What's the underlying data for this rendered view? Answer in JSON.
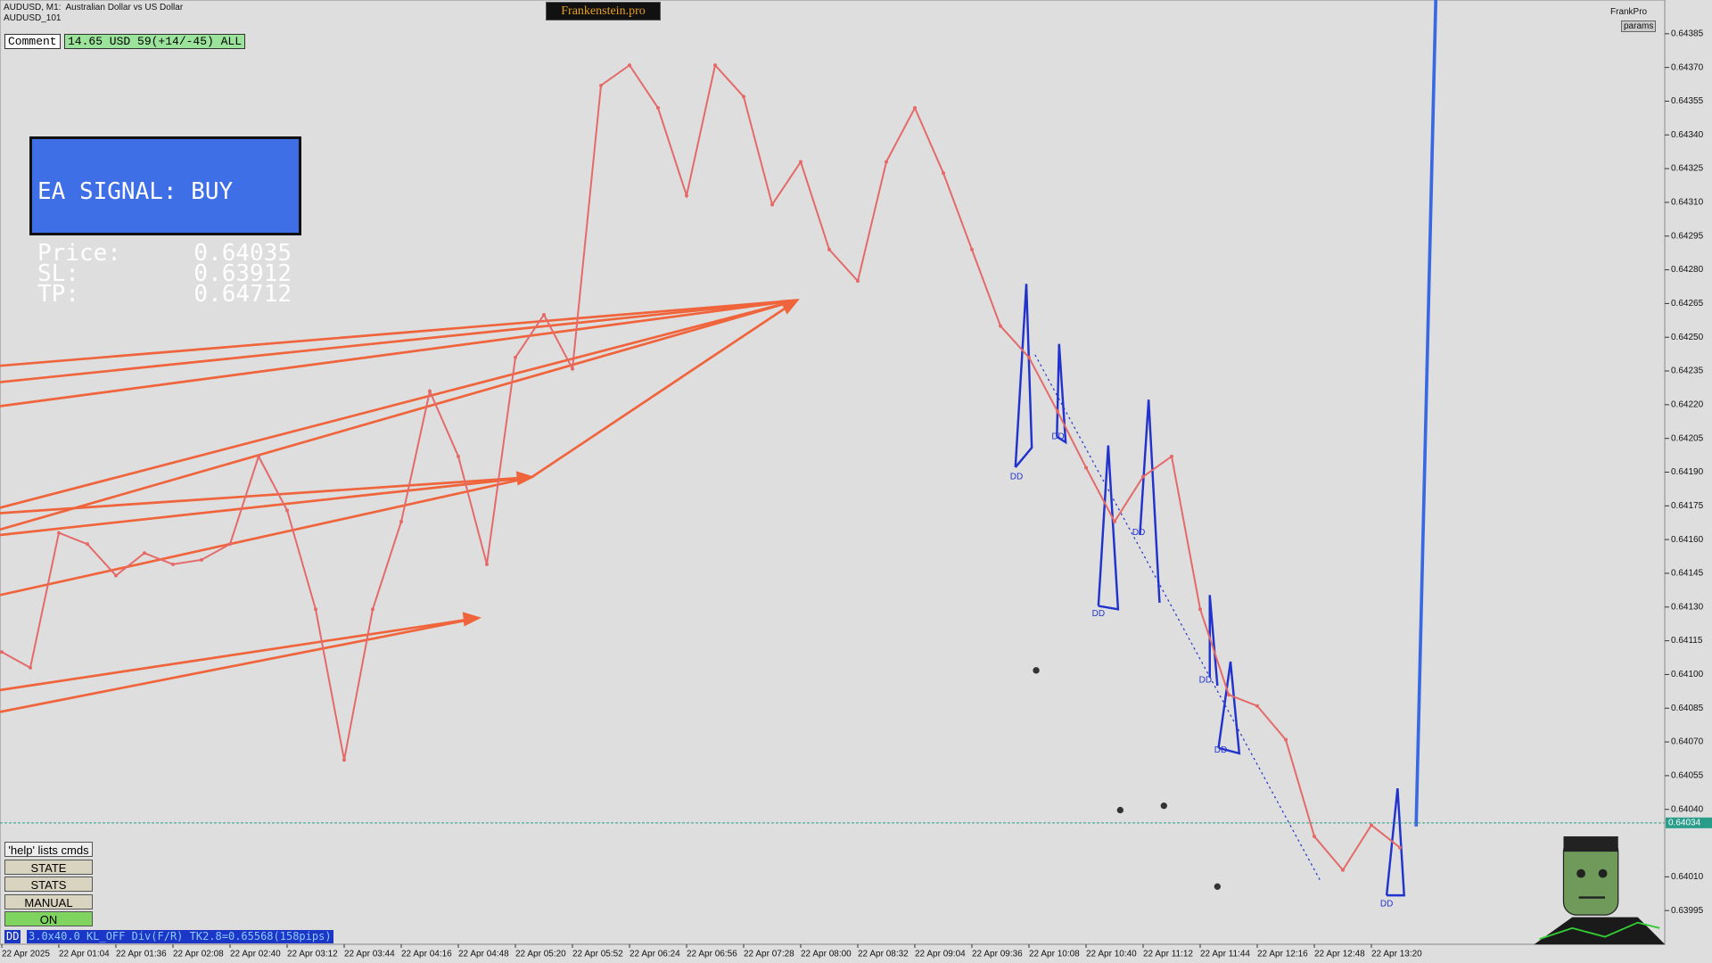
{
  "header": {
    "symbol": "AUDUSD, M1:  Australian Dollar vs US Dollar",
    "account": "AUDUSD_101",
    "brand": "Frankenstein.pro",
    "user": "FrankPro",
    "params_button": "params"
  },
  "comment": {
    "label": "Comment",
    "value": "14.65 USD 59(+14/-45) ALL"
  },
  "signal": {
    "title": "EA SIGNAL: BUY",
    "rows": [
      [
        "Price:",
        "0.64035"
      ],
      [
        "SL:",
        "0.63912"
      ],
      [
        "TP:",
        "0.64712"
      ]
    ]
  },
  "buttons": {
    "help": "'help' lists cmds",
    "items": [
      "STATE",
      "STATS",
      "MANUAL",
      "ON"
    ]
  },
  "status": {
    "tag": "DD",
    "text": "3.0x40.0 KL_OFF Div(F/R) TK2.8=0.65568(158pips)"
  },
  "dd_labels": [
    "DD",
    "DD",
    "DD",
    "DD",
    "DD",
    "DD",
    "DD"
  ],
  "chart_data": {
    "type": "line",
    "categories": [
      "22 Apr 2025",
      null,
      "22 Apr 01:04",
      null,
      "22 Apr 01:36",
      null,
      "22 Apr 02:08",
      null,
      "22 Apr 02:40",
      null,
      "22 Apr 03:12",
      null,
      "22 Apr 03:44",
      null,
      "22 Apr 04:16",
      null,
      "22 Apr 04:48",
      null,
      "22 Apr 05:20",
      null,
      "22 Apr 05:52",
      null,
      "22 Apr 06:24",
      null,
      "22 Apr 06:56",
      null,
      "22 Apr 07:28",
      null,
      "22 Apr 08:00",
      null,
      "22 Apr 08:32",
      null,
      "22 Apr 09:04",
      null,
      "22 Apr 09:36",
      null,
      "22 Apr 10:08",
      null,
      "22 Apr 10:40",
      null,
      "22 Apr 11:12",
      null,
      "22 Apr 11:44",
      null,
      "22 Apr 12:16",
      null,
      "22 Apr 12:48",
      null,
      "22 Apr 13:20",
      null
    ],
    "values": [
      0.6411,
      0.64103,
      0.64163,
      0.64158,
      0.64144,
      0.64154,
      0.64149,
      0.64151,
      0.64158,
      0.64197,
      0.64173,
      0.64129,
      0.64062,
      0.64129,
      0.64168,
      0.64226,
      0.64197,
      0.64149,
      0.64241,
      0.6426,
      0.64236,
      0.64362,
      0.64371,
      0.64352,
      0.64313,
      0.64371,
      0.64357,
      0.64309,
      0.64328,
      0.64289,
      0.64275,
      0.64328,
      0.64352,
      0.64323,
      0.64289,
      0.64255,
      0.64241,
      0.64217,
      0.64192,
      0.64168,
      0.64188,
      0.64197,
      0.64129,
      0.64091,
      0.64086,
      0.64071,
      0.64028,
      0.64013,
      0.64033,
      0.64023
    ],
    "color": "#e46a6a",
    "current_price": 0.64034,
    "current_price_color": "#2a9d8a",
    "ylim": [
      0.6398,
      0.644
    ],
    "yticks": [
      0.64385,
      {
        "value": 0.6437,
        "label": "0.64370"
      },
      0.64355,
      {
        "value": 0.6434,
        "label": "0.64340"
      },
      0.64325,
      {
        "value": 0.6431,
        "label": "0.64310"
      },
      0.64295,
      {
        "value": 0.6428,
        "label": "0.64280"
      },
      0.64265,
      {
        "value": 0.6425,
        "label": "0.64250"
      },
      0.64235,
      {
        "value": 0.6422,
        "label": "0.64220"
      },
      0.64205,
      {
        "value": 0.6419,
        "label": "0.64190"
      },
      0.64175,
      {
        "value": 0.6416,
        "label": "0.64160"
      },
      0.64145,
      {
        "value": 0.6413,
        "label": "0.64130"
      },
      0.64115,
      {
        "value": 0.641,
        "label": "0.64100"
      },
      0.64085,
      {
        "value": 0.6407,
        "label": "0.64070"
      },
      0.64055,
      {
        "value": 0.6404,
        "label": "0.64040"
      },
      {
        "value": 0.6401,
        "label": "0.64010"
      },
      0.63995
    ],
    "grid": false
  }
}
